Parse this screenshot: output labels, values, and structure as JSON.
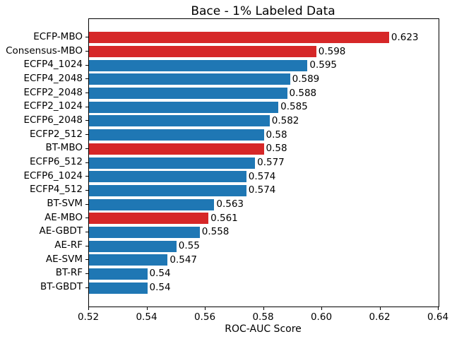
{
  "chart_data": {
    "type": "bar",
    "orientation": "horizontal",
    "title": "Bace - 1% Labeled Data",
    "xlabel": "ROC-AUC Score",
    "ylabel": "",
    "categories": [
      "ECFP-MBO",
      "Consensus-MBO",
      "ECFP4_1024",
      "ECFP4_2048",
      "ECFP2_2048",
      "ECFP2_1024",
      "ECFP6_2048",
      "ECFP2_512",
      "BT-MBO",
      "ECFP6_512",
      "ECFP6_1024",
      "ECFP4_512",
      "BT-SVM",
      "AE-MBO",
      "AE-GBDT",
      "AE-RF",
      "AE-SVM",
      "BT-RF",
      "BT-GBDT"
    ],
    "values": [
      0.623,
      0.598,
      0.595,
      0.589,
      0.588,
      0.585,
      0.582,
      0.58,
      0.58,
      0.577,
      0.574,
      0.574,
      0.563,
      0.561,
      0.558,
      0.55,
      0.547,
      0.54,
      0.54
    ],
    "value_labels": [
      "0.623",
      "0.598",
      "0.595",
      "0.589",
      "0.588",
      "0.585",
      "0.582",
      "0.58",
      "0.58",
      "0.577",
      "0.574",
      "0.574",
      "0.563",
      "0.561",
      "0.558",
      "0.55",
      "0.547",
      "0.54",
      "0.54"
    ],
    "bar_colors": [
      "#d62728",
      "#d62728",
      "#1f77b4",
      "#1f77b4",
      "#1f77b4",
      "#1f77b4",
      "#1f77b4",
      "#1f77b4",
      "#d62728",
      "#1f77b4",
      "#1f77b4",
      "#1f77b4",
      "#1f77b4",
      "#d62728",
      "#1f77b4",
      "#1f77b4",
      "#1f77b4",
      "#1f77b4",
      "#1f77b4"
    ],
    "highlighted_categories": [
      "ECFP-MBO",
      "Consensus-MBO",
      "BT-MBO",
      "AE-MBO"
    ],
    "colors": {
      "highlight": "#d62728",
      "default": "#1f77b4"
    },
    "xlim": [
      0.52,
      0.64
    ],
    "xticks": [
      "0.52",
      "0.54",
      "0.56",
      "0.58",
      "0.60",
      "0.62",
      "0.64"
    ],
    "grid": false,
    "legend": null
  }
}
